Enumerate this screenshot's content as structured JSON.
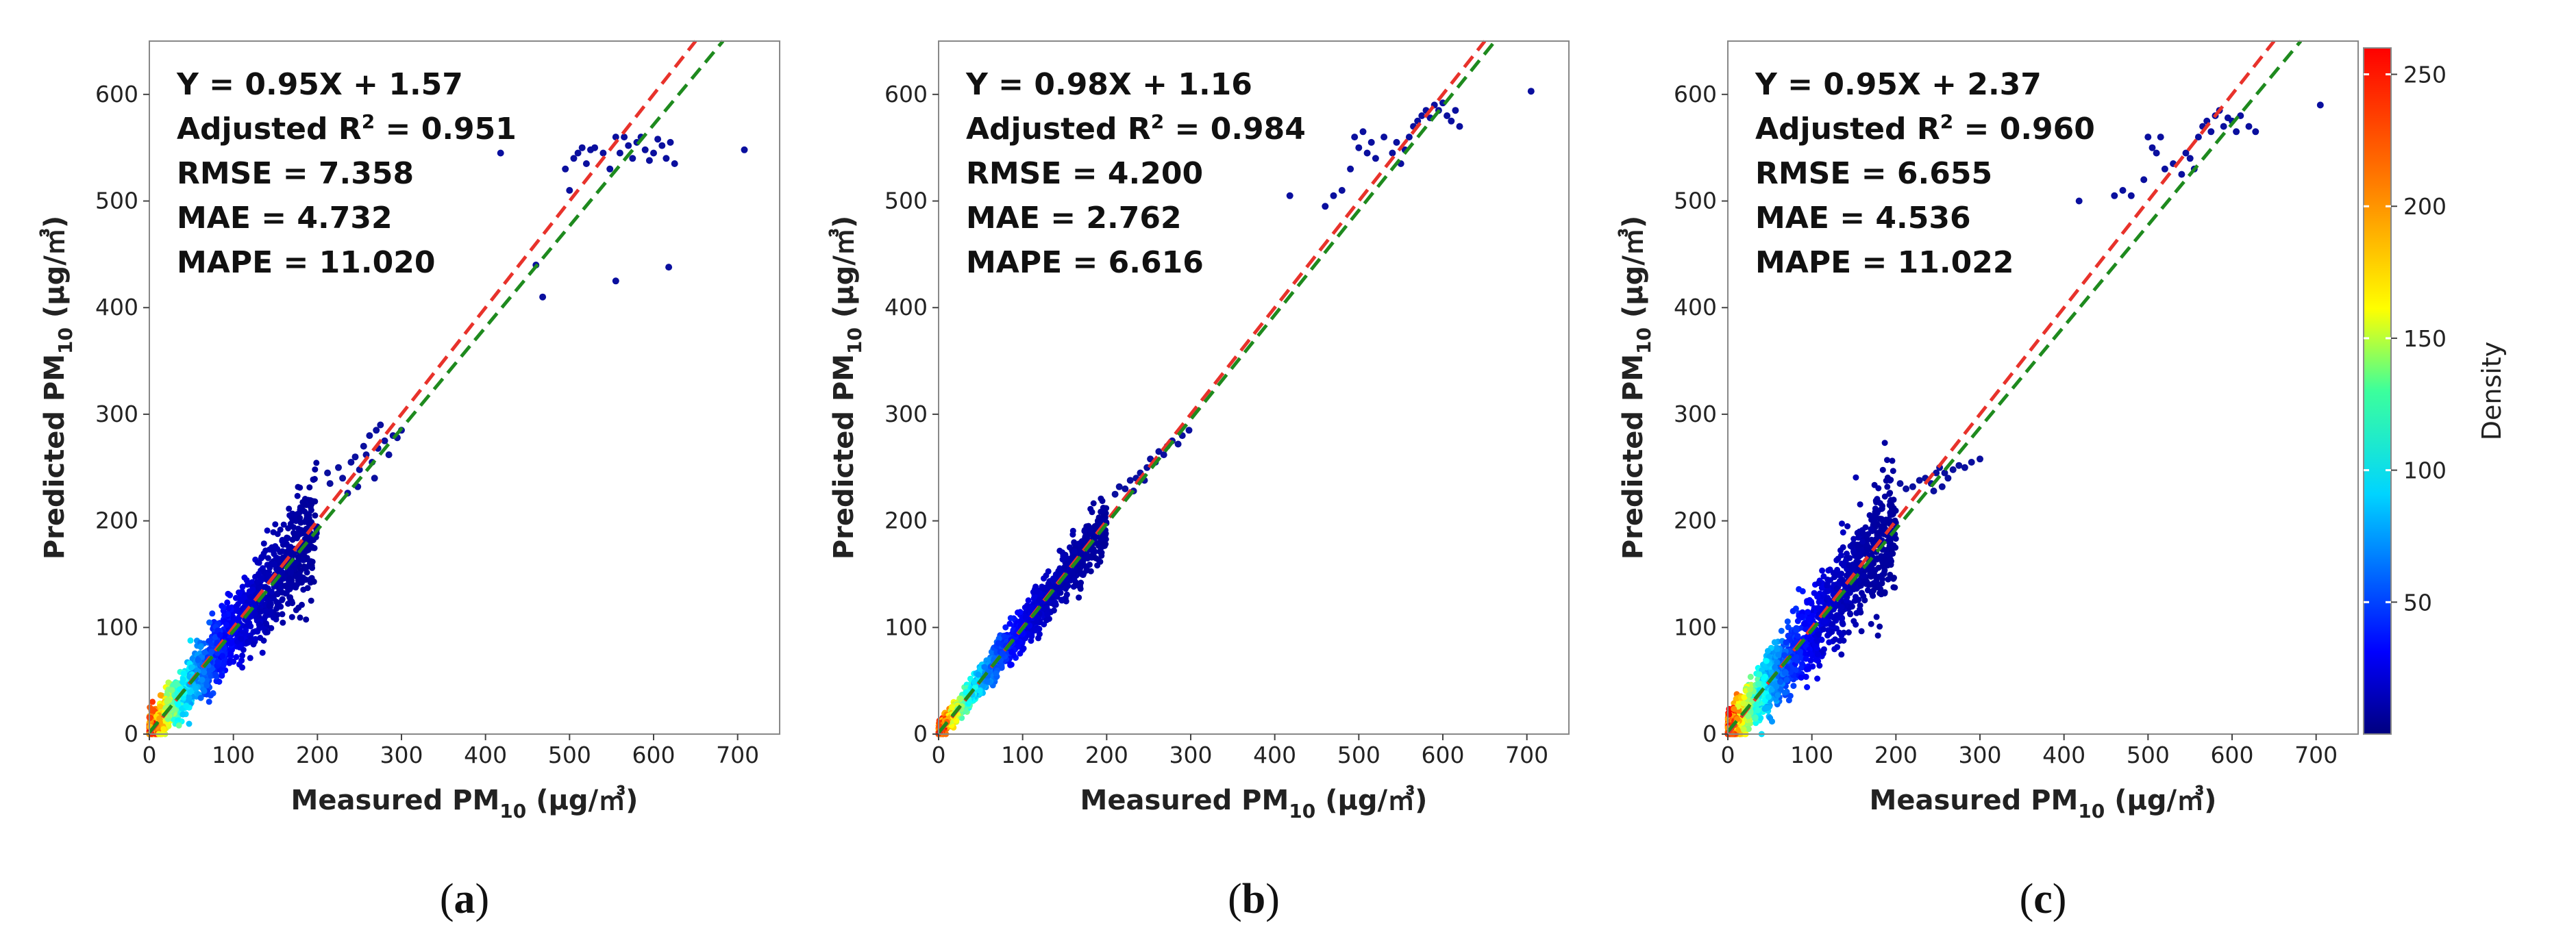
{
  "figure": {
    "x_label": {
      "prefix": "Measured PM",
      "sub": "10",
      "unit": " (μg/㎥)"
    },
    "y_label": {
      "prefix": "Predicted PM",
      "sub": "10",
      "unit": " (μg/㎥)"
    },
    "identity_line_color": "#e8322b",
    "fit_line_color": "#1e8a1e",
    "frame_color": "#888888"
  },
  "colorbar": {
    "label": "Density",
    "ticks": [
      "50",
      "100",
      "150",
      "200",
      "250"
    ],
    "tick_values": [
      50,
      100,
      150,
      200,
      250
    ],
    "range": [
      0,
      260
    ]
  },
  "chart_data": [
    {
      "type": "scatter",
      "panel_label": "a",
      "equation": "Y = 0.95X + 1.57",
      "r2_prefix": "Adjusted R",
      "r2_sup": "2",
      "r2_value": " = 0.951",
      "rmse": "RMSE = 7.358",
      "mae": "MAE = 4.732",
      "mape": "MAPE = 11.020",
      "slope": 0.95,
      "intercept": 1.57,
      "xlim": [
        0,
        750
      ],
      "ylim": [
        0,
        650
      ],
      "xticks": [
        0,
        100,
        200,
        300,
        400,
        500,
        600,
        700
      ],
      "yticks": [
        0,
        100,
        200,
        300,
        400,
        500,
        600
      ],
      "dense_cluster": {
        "x_range": [
          0,
          200
        ],
        "slope": 0.95,
        "spread": 20
      },
      "mid_points": [
        [
          212,
          245
        ],
        [
          215,
          235
        ],
        [
          225,
          250
        ],
        [
          230,
          240
        ],
        [
          240,
          255
        ],
        [
          245,
          260
        ],
        [
          250,
          248
        ],
        [
          255,
          270
        ],
        [
          258,
          262
        ],
        [
          262,
          280
        ],
        [
          265,
          255
        ],
        [
          270,
          285
        ],
        [
          272,
          268
        ],
        [
          275,
          290
        ],
        [
          280,
          275
        ],
        [
          285,
          262
        ],
        [
          290,
          280
        ],
        [
          295,
          278
        ],
        [
          300,
          285
        ],
        [
          248,
          232
        ],
        [
          236,
          226
        ],
        [
          268,
          240
        ]
      ],
      "outliers": [
        [
          418,
          545
        ],
        [
          460,
          440
        ],
        [
          468,
          410
        ],
        [
          495,
          530
        ],
        [
          500,
          510
        ],
        [
          505,
          540
        ],
        [
          510,
          545
        ],
        [
          515,
          550
        ],
        [
          520,
          535
        ],
        [
          525,
          548
        ],
        [
          530,
          550
        ],
        [
          540,
          545
        ],
        [
          548,
          530
        ],
        [
          555,
          425
        ],
        [
          555,
          560
        ],
        [
          560,
          545
        ],
        [
          565,
          560
        ],
        [
          570,
          552
        ],
        [
          575,
          540
        ],
        [
          580,
          555
        ],
        [
          585,
          560
        ],
        [
          590,
          548
        ],
        [
          595,
          538
        ],
        [
          600,
          545
        ],
        [
          605,
          558
        ],
        [
          610,
          552
        ],
        [
          615,
          540
        ],
        [
          618,
          438
        ],
        [
          620,
          555
        ],
        [
          625,
          535
        ],
        [
          708,
          548
        ]
      ]
    },
    {
      "type": "scatter",
      "panel_label": "b",
      "equation": "Y = 0.98X + 1.16",
      "r2_prefix": "Adjusted R",
      "r2_sup": "2",
      "r2_value": " = 0.984",
      "rmse": "RMSE = 4.200",
      "mae": "MAE = 2.762",
      "mape": "MAPE = 6.616",
      "slope": 0.98,
      "intercept": 1.16,
      "xlim": [
        0,
        750
      ],
      "ylim": [
        0,
        650
      ],
      "xticks": [
        0,
        100,
        200,
        300,
        400,
        500,
        600,
        700
      ],
      "yticks": [
        0,
        100,
        200,
        300,
        400,
        500,
        600
      ],
      "dense_cluster": {
        "x_range": [
          0,
          200
        ],
        "slope": 0.98,
        "spread": 10
      },
      "mid_points": [
        [
          210,
          225
        ],
        [
          215,
          232
        ],
        [
          222,
          230
        ],
        [
          228,
          238
        ],
        [
          235,
          240
        ],
        [
          240,
          245
        ],
        [
          248,
          250
        ],
        [
          252,
          258
        ],
        [
          258,
          255
        ],
        [
          262,
          265
        ],
        [
          268,
          262
        ],
        [
          272,
          270
        ],
        [
          278,
          275
        ],
        [
          285,
          272
        ],
        [
          290,
          280
        ],
        [
          298,
          285
        ],
        [
          245,
          238
        ],
        [
          232,
          228
        ]
      ],
      "outliers": [
        [
          418,
          505
        ],
        [
          460,
          495
        ],
        [
          470,
          505
        ],
        [
          480,
          510
        ],
        [
          490,
          530
        ],
        [
          495,
          560
        ],
        [
          500,
          550
        ],
        [
          505,
          565
        ],
        [
          510,
          545
        ],
        [
          515,
          555
        ],
        [
          520,
          540
        ],
        [
          530,
          560
        ],
        [
          540,
          545
        ],
        [
          545,
          555
        ],
        [
          550,
          535
        ],
        [
          555,
          548
        ],
        [
          560,
          560
        ],
        [
          565,
          570
        ],
        [
          570,
          575
        ],
        [
          575,
          580
        ],
        [
          580,
          585
        ],
        [
          585,
          578
        ],
        [
          590,
          590
        ],
        [
          595,
          585
        ],
        [
          600,
          592
        ],
        [
          605,
          580
        ],
        [
          610,
          575
        ],
        [
          615,
          585
        ],
        [
          620,
          570
        ],
        [
          705,
          603
        ]
      ]
    },
    {
      "type": "scatter",
      "panel_label": "c",
      "equation": "Y = 0.95X + 2.37",
      "r2_prefix": "Adjusted R",
      "r2_sup": "2",
      "r2_value": " = 0.960",
      "rmse": "RMSE = 6.655",
      "mae": "MAE = 4.536",
      "mape": "MAPE = 11.022",
      "slope": 0.95,
      "intercept": 2.37,
      "xlim": [
        0,
        750
      ],
      "ylim": [
        0,
        650
      ],
      "xticks": [
        0,
        100,
        200,
        300,
        400,
        500,
        600,
        700
      ],
      "yticks": [
        0,
        100,
        200,
        300,
        400,
        500,
        600
      ],
      "dense_cluster": {
        "x_range": [
          0,
          200
        ],
        "slope": 0.95,
        "spread": 22
      },
      "mid_points": [
        [
          205,
          235
        ],
        [
          212,
          230
        ],
        [
          220,
          232
        ],
        [
          228,
          238
        ],
        [
          235,
          240
        ],
        [
          242,
          235
        ],
        [
          248,
          245
        ],
        [
          252,
          250
        ],
        [
          258,
          245
        ],
        [
          262,
          240
        ],
        [
          268,
          248
        ],
        [
          275,
          252
        ],
        [
          282,
          250
        ],
        [
          290,
          255
        ],
        [
          300,
          258
        ],
        [
          245,
          228
        ],
        [
          255,
          232
        ]
      ],
      "outliers": [
        [
          418,
          500
        ],
        [
          460,
          505
        ],
        [
          470,
          510
        ],
        [
          480,
          505
        ],
        [
          495,
          520
        ],
        [
          500,
          560
        ],
        [
          505,
          550
        ],
        [
          510,
          545
        ],
        [
          515,
          560
        ],
        [
          520,
          530
        ],
        [
          530,
          535
        ],
        [
          540,
          525
        ],
        [
          545,
          545
        ],
        [
          550,
          540
        ],
        [
          555,
          530
        ],
        [
          560,
          560
        ],
        [
          565,
          570
        ],
        [
          570,
          575
        ],
        [
          575,
          565
        ],
        [
          580,
          580
        ],
        [
          585,
          585
        ],
        [
          590,
          570
        ],
        [
          595,
          578
        ],
        [
          600,
          575
        ],
        [
          605,
          565
        ],
        [
          610,
          580
        ],
        [
          620,
          570
        ],
        [
          628,
          565
        ],
        [
          705,
          590
        ]
      ]
    }
  ]
}
